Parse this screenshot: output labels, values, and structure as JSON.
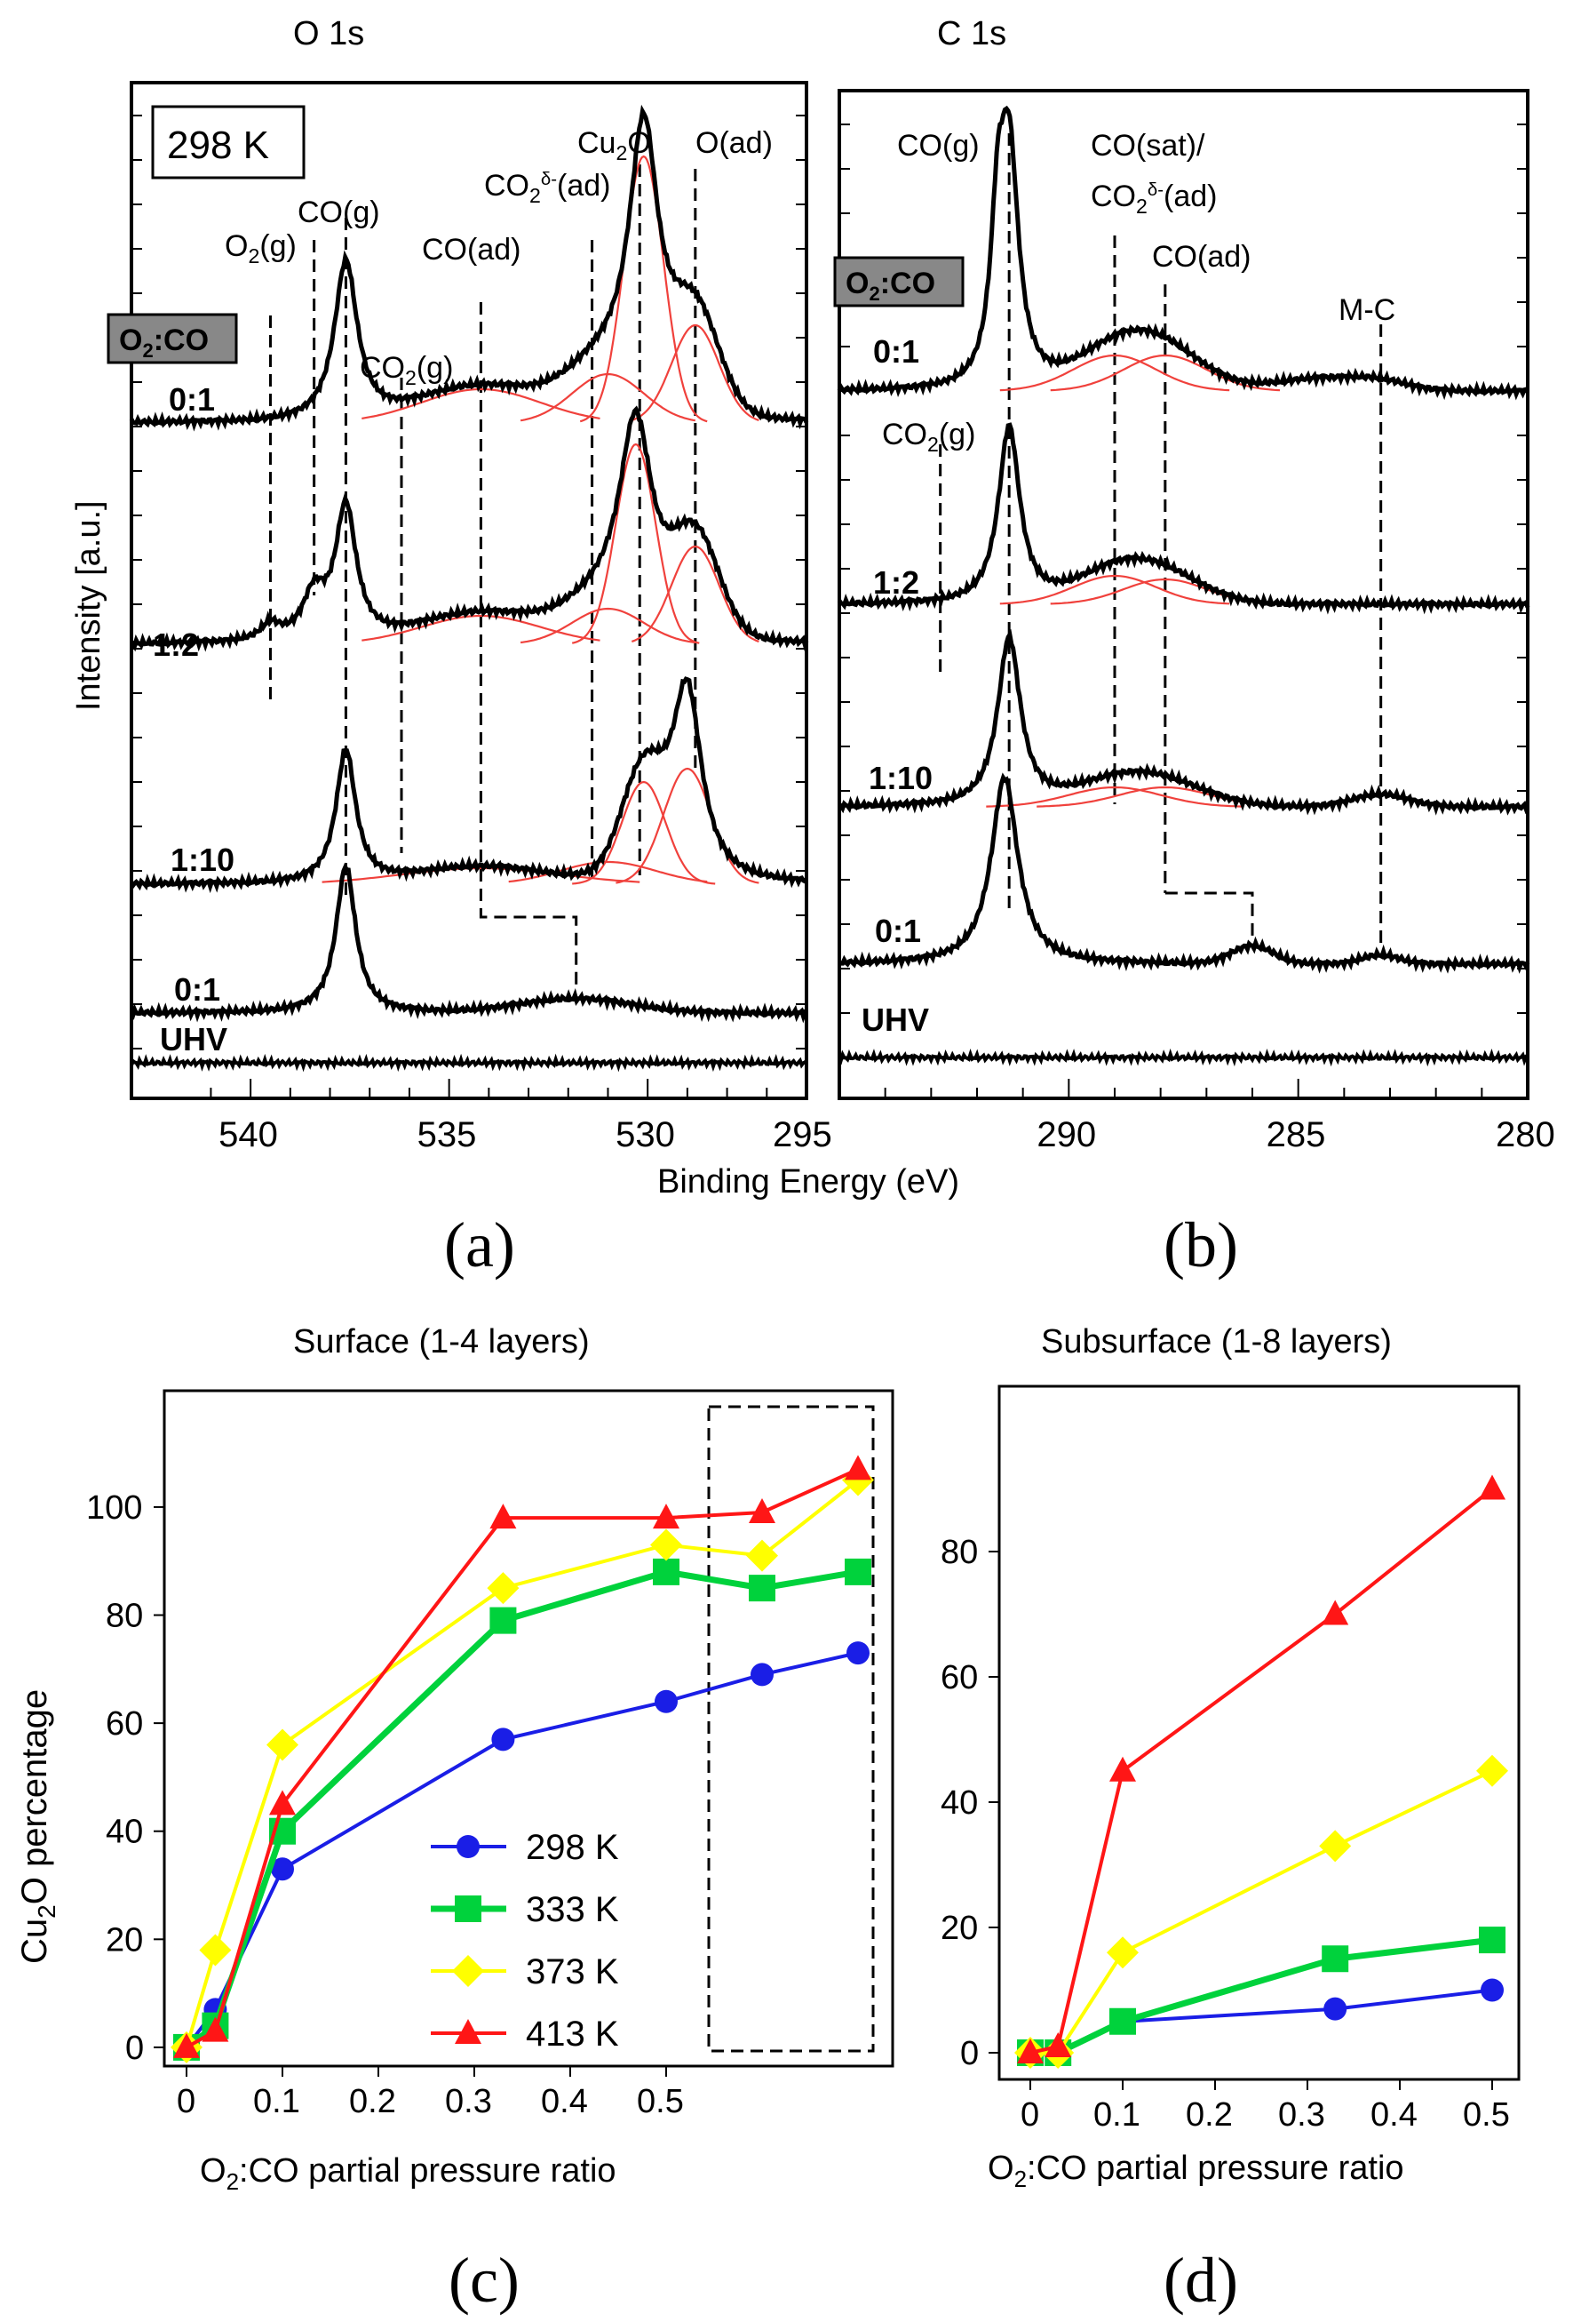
{
  "colors": {
    "data": "#000000",
    "fit": "#f0413c",
    "s298": "#1a1ee6",
    "s333": "#00d23c",
    "s373": "#ffff00",
    "s413": "#ff1616"
  },
  "xps_labels": {
    "x_axis": "Binding Energy (eV)",
    "y_axis": "Intensity [a.u.]",
    "ratio_badge": "O2:CO",
    "temp_badge": "298 K",
    "curve_labels": [
      "0:1",
      "1:2",
      "1:10",
      "0:1",
      "UHV"
    ]
  },
  "chart_data": [
    {
      "panel": "a",
      "type": "line",
      "title": "O 1s",
      "xlabel": "Binding Energy (eV)",
      "ylabel": "Intensity [a.u.]",
      "xlim": [
        543,
        526
      ],
      "x_reversed": true,
      "xticks": [
        540,
        535,
        530
      ],
      "temperature": "298 K",
      "series": [
        {
          "name": "0:1",
          "peaks": [
            [
              537.6,
              "CO(g)"
            ],
            [
              534.2,
              "CO(ad)"
            ],
            [
              531.2,
              "CO2δ-(ad)"
            ],
            [
              530.1,
              "Cu2O"
            ],
            [
              528.8,
              "O(ad)"
            ]
          ]
        },
        {
          "name": "1:2",
          "peaks": [
            [
              539.5,
              "O2(g)"
            ],
            [
              538.4,
              "O2(g)"
            ],
            [
              537.6,
              "CO(g)"
            ],
            [
              534.2,
              "CO(ad)"
            ],
            [
              530.3,
              "Cu2O"
            ],
            [
              528.8,
              "O(ad)"
            ]
          ]
        },
        {
          "name": "1:10",
          "peaks": [
            [
              537.6,
              "CO(g)"
            ],
            [
              534.2,
              "CO(ad)"
            ],
            [
              530.1,
              "Cu2O"
            ],
            [
              529.0,
              "O(ad)"
            ]
          ]
        },
        {
          "name": "0:1",
          "peaks": [
            [
              537.6,
              "CO(g)"
            ],
            [
              531.8,
              "CO(ad)"
            ]
          ]
        },
        {
          "name": "UHV",
          "peaks": []
        }
      ],
      "annotations": [
        "O2(g)",
        "CO(g)",
        "CO2(g)",
        "CO(ad)",
        "CO2δ-(ad)",
        "Cu2O",
        "O(ad)"
      ]
    },
    {
      "panel": "b",
      "type": "line",
      "title": "C 1s",
      "xlabel": "Binding Energy (eV)",
      "ylabel": "",
      "xlim": [
        295,
        280
      ],
      "x_reversed": true,
      "xticks": [
        295,
        290,
        285,
        280
      ],
      "series": [
        {
          "name": "0:1",
          "peaks": [
            [
              291.3,
              "CO(g)"
            ],
            [
              289.0,
              "CO(sat)/CO2δ-(ad)"
            ],
            [
              287.9,
              "CO(ad)"
            ],
            [
              284.5,
              ""
            ],
            [
              283.2,
              "M-C"
            ]
          ]
        },
        {
          "name": "1:2",
          "peaks": [
            [
              291.3,
              "CO(g)"
            ],
            [
              289.0,
              "CO(sat)/CO2δ-(ad)"
            ],
            [
              287.9,
              "CO(ad)"
            ]
          ]
        },
        {
          "name": "1:10",
          "peaks": [
            [
              291.3,
              "CO(g)"
            ],
            [
              289.0,
              "CO(sat)/CO2δ-(ad)"
            ],
            [
              287.9,
              "CO(ad)"
            ],
            [
              283.2,
              "M-C"
            ]
          ]
        },
        {
          "name": "0:1",
          "peaks": [
            [
              291.3,
              "CO(g)"
            ],
            [
              286.0,
              "CO(ad)"
            ],
            [
              283.2,
              "M-C"
            ]
          ]
        },
        {
          "name": "UHV",
          "peaks": []
        }
      ],
      "annotations": [
        "CO(g)",
        "CO(sat)/CO2δ-(ad)",
        "CO(ad)",
        "M-C",
        "CO2(g)"
      ]
    },
    {
      "panel": "c",
      "type": "line",
      "title": "Surface (1-4 layers)",
      "xlabel": "O2:CO partial pressure ratio",
      "ylabel": "Cu2O percentage",
      "ylim": [
        -5,
        120
      ],
      "yticks": [
        0,
        20,
        40,
        60,
        80,
        100
      ],
      "xticks": [
        0,
        0.1,
        0.2,
        0.3,
        0.4,
        0.5
      ],
      "x": [
        0,
        0.03,
        0.1,
        0.33,
        0.5,
        0.6,
        0.7
      ],
      "legend": "center",
      "series": [
        {
          "name": "298 K",
          "values": [
            0,
            7,
            33,
            57,
            64,
            69,
            73
          ]
        },
        {
          "name": "333 K",
          "values": [
            0,
            4,
            40,
            79,
            88,
            85,
            88
          ]
        },
        {
          "name": "373 K",
          "values": [
            0,
            18,
            56,
            85,
            93,
            91,
            105
          ]
        },
        {
          "name": "413 K",
          "values": [
            0,
            3,
            45,
            98,
            98,
            99,
            107
          ]
        }
      ]
    },
    {
      "panel": "d",
      "type": "line",
      "title": "Subsurface (1-8 layers)",
      "xlabel": "O2:CO partial pressure ratio",
      "ylabel": "",
      "ylim": [
        -5,
        95
      ],
      "yticks": [
        0,
        20,
        40,
        60,
        80
      ],
      "xticks": [
        0,
        0.1,
        0.2,
        0.3,
        0.4,
        0.5
      ],
      "x": [
        0,
        0.03,
        0.1,
        0.33,
        0.5
      ],
      "series": [
        {
          "name": "298 K",
          "values": [
            0,
            0,
            5,
            7,
            10
          ]
        },
        {
          "name": "333 K",
          "values": [
            0,
            0,
            5,
            15,
            18
          ]
        },
        {
          "name": "373 K",
          "values": [
            0,
            0,
            16,
            33,
            45
          ]
        },
        {
          "name": "413 K",
          "values": [
            0,
            1,
            45,
            70,
            90
          ]
        }
      ]
    }
  ],
  "panel_letters": [
    "(a)",
    "(b)",
    "(c)",
    "(d)"
  ]
}
